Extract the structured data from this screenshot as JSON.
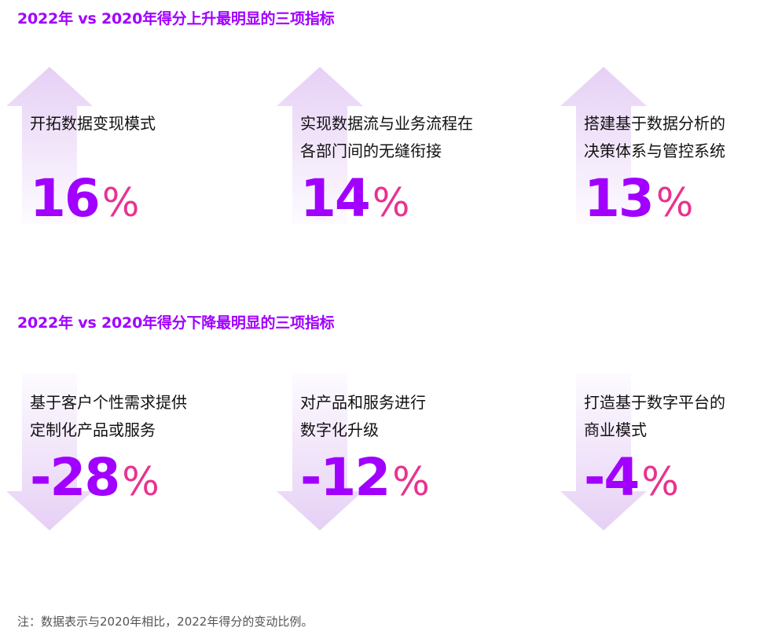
{
  "sections": {
    "increase_title": "2022年 vs 2020年得分上升最明显的三项指标",
    "decrease_title": "2022年 vs 2020年得分下降最明显的三项指标"
  },
  "increase": [
    {
      "line1": "开拓数据变现模式",
      "line2": "",
      "value": "16",
      "unit": "%",
      "direction": "up"
    },
    {
      "line1": "实现数据流与业务流程在",
      "line2": "各部门间的无缝衔接",
      "value": "14",
      "unit": "%",
      "direction": "up"
    },
    {
      "line1": "搭建基于数据分析的",
      "line2": "决策体系与管控系统",
      "value": "13",
      "unit": "%",
      "direction": "up"
    }
  ],
  "decrease": [
    {
      "line1": "基于客户个性需求提供",
      "line2": "定制化产品或服务",
      "value": "-28",
      "unit": "%",
      "direction": "down"
    },
    {
      "line1": "对产品和服务进行",
      "line2": "数字化升级",
      "value": "-12",
      "unit": "%",
      "direction": "down"
    },
    {
      "line1": "打造基于数字平台的",
      "line2": "商业模式",
      "value": "-4",
      "unit": "%",
      "direction": "down"
    }
  ],
  "footnote": "注：数据表示与2020年相比，2022年得分的变动比例。",
  "colors": {
    "heading": "#a100ff",
    "number": "#a100ff",
    "percent": "#e8338f",
    "arrow_dark": "#e4cdf3",
    "arrow_light": "#fbf6fe"
  }
}
